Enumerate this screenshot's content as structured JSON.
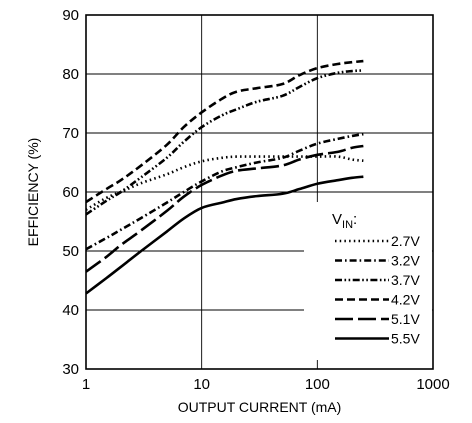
{
  "chart_data": {
    "type": "line",
    "title": "",
    "xlabel": "OUTPUT CURRENT (mA)",
    "ylabel": "EFFICIENCY (%)",
    "x_scale": "log",
    "xlim": [
      1,
      1000
    ],
    "ylim": [
      30,
      90
    ],
    "x_ticks": [
      "1",
      "10",
      "100",
      "1000"
    ],
    "y_ticks": [
      "30",
      "40",
      "50",
      "60",
      "70",
      "80",
      "90"
    ],
    "grid": true,
    "legend_position": "bottom-right",
    "legend_title": {
      "main": "V",
      "sub": "IN",
      "suffix": ":"
    },
    "series": [
      {
        "name": "2.7V",
        "dash": "dotted",
        "points": [
          [
            1,
            57
          ],
          [
            1.5,
            59
          ],
          [
            2,
            60
          ],
          [
            3,
            61.5
          ],
          [
            5,
            63
          ],
          [
            7,
            64.2
          ],
          [
            10,
            65.2
          ],
          [
            15,
            65.8
          ],
          [
            20,
            66
          ],
          [
            30,
            66
          ],
          [
            50,
            66
          ],
          [
            70,
            66
          ],
          [
            100,
            66
          ],
          [
            150,
            66
          ],
          [
            200,
            65.5
          ],
          [
            250,
            65.3
          ]
        ]
      },
      {
        "name": "3.2V",
        "dash": "dash-dot",
        "points": [
          [
            1,
            50.3
          ],
          [
            1.5,
            52.2
          ],
          [
            2,
            53.6
          ],
          [
            3,
            55.6
          ],
          [
            5,
            58.2
          ],
          [
            7,
            60
          ],
          [
            10,
            61.8
          ],
          [
            15,
            63.5
          ],
          [
            20,
            64.2
          ],
          [
            30,
            65
          ],
          [
            50,
            65.8
          ],
          [
            70,
            67
          ],
          [
            100,
            68.2
          ],
          [
            150,
            69
          ],
          [
            200,
            69.5
          ],
          [
            250,
            69.8
          ]
        ]
      },
      {
        "name": "3.7V",
        "dash": "dash-dot-dot",
        "points": [
          [
            1,
            56.2
          ],
          [
            1.5,
            58.5
          ],
          [
            2,
            60
          ],
          [
            3,
            62.5
          ],
          [
            5,
            65.8
          ],
          [
            7,
            68.5
          ],
          [
            10,
            71
          ],
          [
            15,
            73
          ],
          [
            20,
            74
          ],
          [
            30,
            75.3
          ],
          [
            50,
            76.3
          ],
          [
            70,
            77.8
          ],
          [
            100,
            79.3
          ],
          [
            150,
            80.2
          ],
          [
            200,
            80.5
          ],
          [
            250,
            80.6
          ]
        ]
      },
      {
        "name": "4.2V",
        "dash": "dashed",
        "points": [
          [
            1,
            58.3
          ],
          [
            1.5,
            60.5
          ],
          [
            2,
            62
          ],
          [
            3,
            64.5
          ],
          [
            5,
            68
          ],
          [
            7,
            71
          ],
          [
            10,
            73.5
          ],
          [
            15,
            75.8
          ],
          [
            20,
            77
          ],
          [
            30,
            77.6
          ],
          [
            50,
            78.3
          ],
          [
            70,
            79.8
          ],
          [
            100,
            81
          ],
          [
            150,
            81.7
          ],
          [
            200,
            82
          ],
          [
            250,
            82.2
          ]
        ]
      },
      {
        "name": "5.1V",
        "dash": "long-dash",
        "points": [
          [
            1,
            46.5
          ],
          [
            1.5,
            49
          ],
          [
            2,
            51
          ],
          [
            3,
            53.5
          ],
          [
            5,
            56.8
          ],
          [
            7,
            59.2
          ],
          [
            10,
            61.2
          ],
          [
            15,
            62.8
          ],
          [
            20,
            63.6
          ],
          [
            30,
            64
          ],
          [
            50,
            64.5
          ],
          [
            70,
            65.5
          ],
          [
            100,
            66.3
          ],
          [
            150,
            66.8
          ],
          [
            200,
            67.5
          ],
          [
            250,
            67.8
          ]
        ]
      },
      {
        "name": "5.5V",
        "dash": "solid",
        "points": [
          [
            1,
            42.8
          ],
          [
            1.5,
            45.4
          ],
          [
            2,
            47.3
          ],
          [
            3,
            50
          ],
          [
            5,
            53.3
          ],
          [
            7,
            55.5
          ],
          [
            10,
            57.3
          ],
          [
            15,
            58.2
          ],
          [
            20,
            58.8
          ],
          [
            30,
            59.3
          ],
          [
            50,
            59.7
          ],
          [
            70,
            60.5
          ],
          [
            100,
            61.4
          ],
          [
            150,
            62
          ],
          [
            200,
            62.4
          ],
          [
            250,
            62.6
          ]
        ]
      }
    ]
  }
}
